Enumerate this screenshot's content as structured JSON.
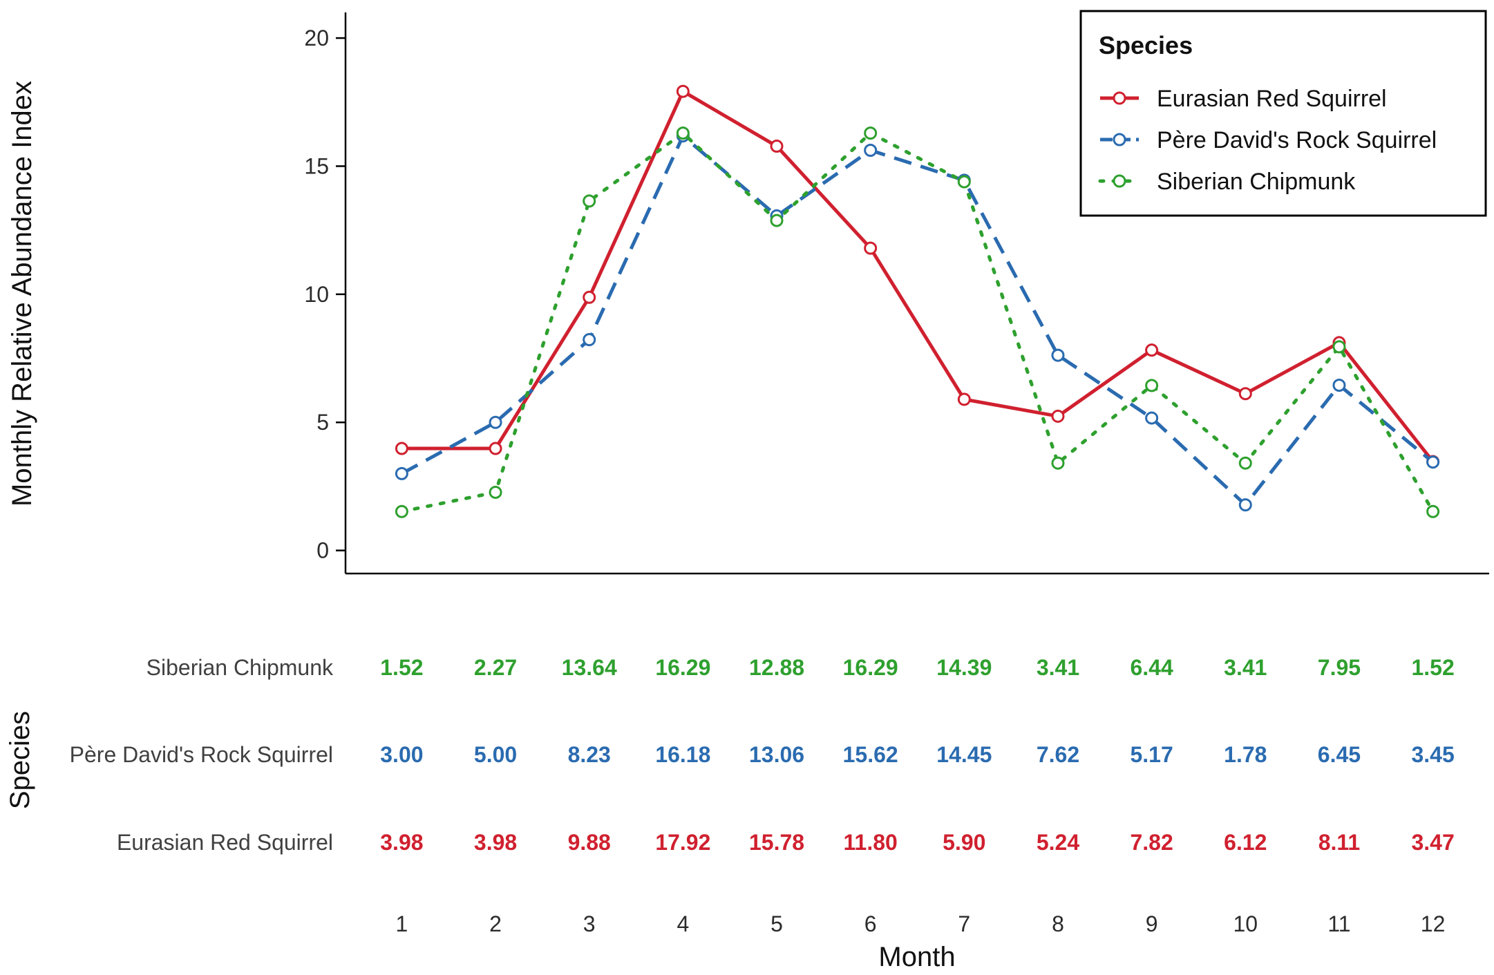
{
  "chart_data": {
    "type": "line",
    "title": "",
    "xlabel": "Month",
    "ylabel": "Monthly Relative Abundance Index",
    "table_ylabel": "Species",
    "legend_title": "Species",
    "legend_position": "top-right",
    "grid": false,
    "ylim": [
      -0.9,
      21
    ],
    "xlim": [
      0.4,
      12.6
    ],
    "yticks": [
      0,
      5,
      10,
      15,
      20
    ],
    "x": [
      1,
      2,
      3,
      4,
      5,
      6,
      7,
      8,
      9,
      10,
      11,
      12
    ],
    "series": [
      {
        "name": "Eurasian Red Squirrel",
        "color": "#d0202f",
        "dash": "solid",
        "values": [
          3.98,
          3.98,
          9.88,
          17.92,
          15.78,
          11.8,
          5.9,
          5.24,
          7.82,
          6.12,
          8.11,
          3.47
        ],
        "labels": [
          "3.98",
          "3.98",
          "9.88",
          "17.92",
          "15.78",
          "11.80",
          "5.90",
          "5.24",
          "7.82",
          "6.12",
          "8.11",
          "3.47"
        ]
      },
      {
        "name": "Père David's Rock Squirrel",
        "color": "#2a6bb0",
        "dash": "dashed",
        "values": [
          3.0,
          5.0,
          8.23,
          16.18,
          13.06,
          15.62,
          14.45,
          7.62,
          5.17,
          1.78,
          6.45,
          3.45
        ],
        "labels": [
          "3.00",
          "5.00",
          "8.23",
          "16.18",
          "13.06",
          "15.62",
          "14.45",
          "7.62",
          "5.17",
          "1.78",
          "6.45",
          "3.45"
        ]
      },
      {
        "name": "Siberian Chipmunk",
        "color": "#2ea02e",
        "dash": "dotted",
        "values": [
          1.52,
          2.27,
          13.64,
          16.29,
          12.88,
          16.29,
          14.39,
          3.41,
          6.44,
          3.41,
          7.95,
          1.52
        ],
        "labels": [
          "1.52",
          "2.27",
          "13.64",
          "16.29",
          "12.88",
          "16.29",
          "14.39",
          "3.41",
          "6.44",
          "3.41",
          "7.95",
          "1.52"
        ]
      }
    ],
    "table_row_order": [
      "Siberian Chipmunk",
      "Père David's Rock Squirrel",
      "Eurasian Red Squirrel"
    ]
  }
}
